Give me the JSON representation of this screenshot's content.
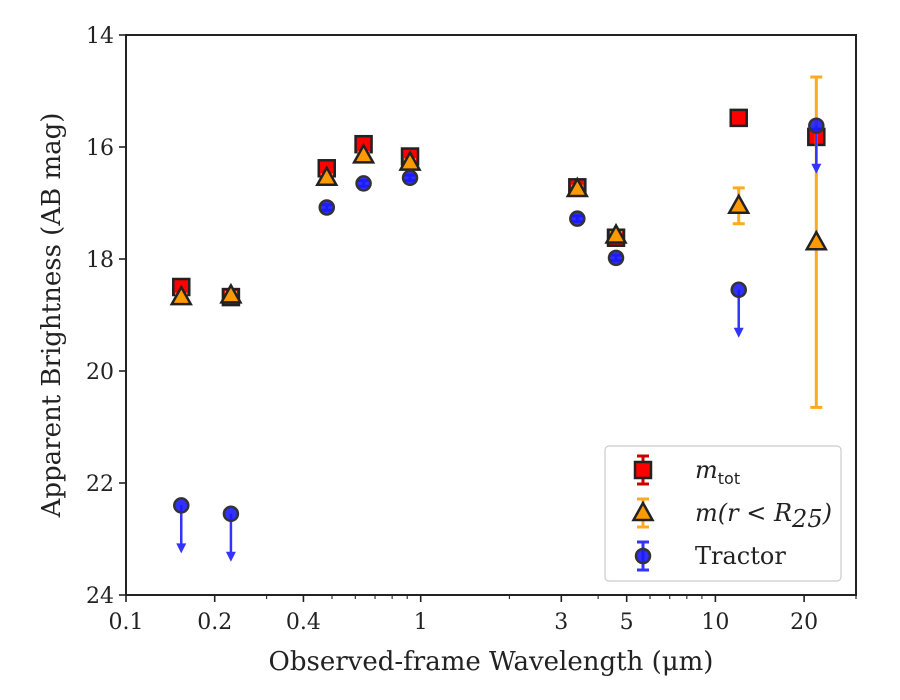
{
  "chart_data": {
    "type": "scatter",
    "xlabel": "Observed-frame Wavelength (μm)",
    "ylabel": "Apparent Brightness (AB mag)",
    "x_scale": "log",
    "xlim": [
      0.1,
      30
    ],
    "ylim": [
      24,
      14
    ],
    "y_inverted": true,
    "x_ticks": [
      {
        "value": 0.1,
        "label": "0.1"
      },
      {
        "value": 0.2,
        "label": "0.2"
      },
      {
        "value": 0.4,
        "label": "0.4"
      },
      {
        "value": 1,
        "label": "1"
      },
      {
        "value": 3,
        "label": "3"
      },
      {
        "value": 5,
        "label": "5"
      },
      {
        "value": 10,
        "label": "10"
      },
      {
        "value": 20,
        "label": "20"
      }
    ],
    "y_ticks": [
      {
        "value": 14,
        "label": "14"
      },
      {
        "value": 16,
        "label": "16"
      },
      {
        "value": 18,
        "label": "18"
      },
      {
        "value": 20,
        "label": "20"
      },
      {
        "value": 22,
        "label": "22"
      },
      {
        "value": 24,
        "label": "24"
      }
    ],
    "legend_position": "lower-right",
    "series": [
      {
        "name": "m_tot",
        "legend_main": "m",
        "legend_sub": "tot",
        "marker": "square",
        "color": "#ff0000",
        "edge_color": "#222222",
        "error_color": "#cc0000",
        "points": [
          {
            "x": 0.154,
            "y": 18.5,
            "err": 0.05
          },
          {
            "x": 0.227,
            "y": 18.68,
            "err": 0.05
          },
          {
            "x": 0.48,
            "y": 16.38,
            "err": 0.05
          },
          {
            "x": 0.64,
            "y": 15.95,
            "err": 0.05
          },
          {
            "x": 0.92,
            "y": 16.17,
            "err": 0.05
          },
          {
            "x": 3.4,
            "y": 16.72,
            "err": 0.05
          },
          {
            "x": 4.6,
            "y": 17.62,
            "err": 0.05
          },
          {
            "x": 12.0,
            "y": 15.48,
            "err": 0.05
          },
          {
            "x": 22.0,
            "y": 15.82,
            "err": 0.05
          }
        ]
      },
      {
        "name": "m(r<R25)",
        "legend_main": "m",
        "legend_tail": "(r < R",
        "legend_sub": "25",
        "legend_close": ")",
        "marker": "triangle",
        "color": "#ff9900",
        "edge_color": "#222222",
        "error_color": "#ffaa22",
        "points": [
          {
            "x": 0.154,
            "y": 18.68,
            "err": 0.05
          },
          {
            "x": 0.227,
            "y": 18.65,
            "err": 0.05
          },
          {
            "x": 0.48,
            "y": 16.55,
            "err": 0.05
          },
          {
            "x": 0.64,
            "y": 16.15,
            "err": 0.05
          },
          {
            "x": 0.92,
            "y": 16.28,
            "err": 0.05
          },
          {
            "x": 3.4,
            "y": 16.75,
            "err": 0.05
          },
          {
            "x": 4.6,
            "y": 17.58,
            "err": 0.05
          },
          {
            "x": 12.0,
            "y": 17.05,
            "err": 0.32
          },
          {
            "x": 22.0,
            "y": 17.7,
            "err": 2.95
          }
        ]
      },
      {
        "name": "Tractor",
        "legend_main": "Tractor",
        "marker": "circle",
        "color": "#1a1aff",
        "edge_color": "#333333",
        "error_color": "#3333ff",
        "points": [
          {
            "x": 0.154,
            "y": 22.4,
            "upper_limit": true
          },
          {
            "x": 0.227,
            "y": 22.55,
            "upper_limit": true
          },
          {
            "x": 0.48,
            "y": 17.08,
            "err": 0.05
          },
          {
            "x": 0.64,
            "y": 16.65,
            "err": 0.05
          },
          {
            "x": 0.92,
            "y": 16.55,
            "err": 0.05
          },
          {
            "x": 3.4,
            "y": 17.28,
            "err": 0.05
          },
          {
            "x": 4.6,
            "y": 17.98,
            "err": 0.05
          },
          {
            "x": 12.0,
            "y": 18.55,
            "upper_limit": true
          },
          {
            "x": 22.0,
            "y": 15.62,
            "upper_limit": true
          }
        ]
      }
    ]
  }
}
